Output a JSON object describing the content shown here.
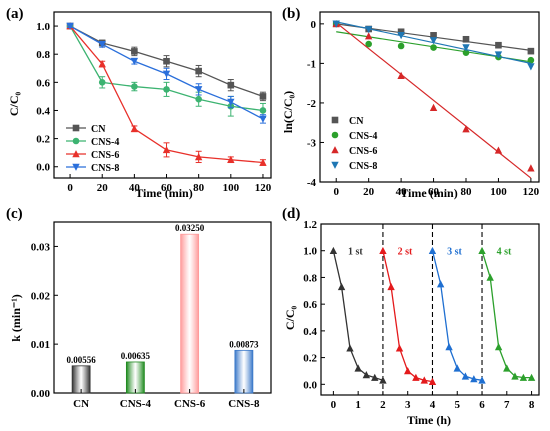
{
  "chart_data": [
    {
      "panel": "(a)",
      "type": "line",
      "xlabel": "Time (min)",
      "ylabel": "C/C₀",
      "xlim": [
        -10,
        125
      ],
      "ylim": [
        -0.08,
        1.1
      ],
      "xticks": [
        0,
        20,
        40,
        60,
        80,
        100,
        120
      ],
      "yticks": [
        0.0,
        0.2,
        0.4,
        0.6,
        0.8,
        1.0
      ],
      "x": [
        0,
        20,
        40,
        60,
        80,
        100,
        120
      ],
      "legend_position": "bottom-left",
      "series": [
        {
          "name": "CN",
          "color": "#555555",
          "marker": "square",
          "values": [
            1.0,
            0.88,
            0.82,
            0.75,
            0.68,
            0.58,
            0.5
          ],
          "errors": [
            0.01,
            0.02,
            0.03,
            0.04,
            0.04,
            0.04,
            0.03
          ]
        },
        {
          "name": "CNS-4",
          "color": "#3cb371",
          "marker": "circle",
          "values": [
            1.0,
            0.6,
            0.57,
            0.55,
            0.48,
            0.43,
            0.4
          ],
          "errors": [
            0.01,
            0.04,
            0.03,
            0.05,
            0.05,
            0.07,
            0.05
          ]
        },
        {
          "name": "CNS-6",
          "color": "#e8302a",
          "marker": "triangle-up",
          "values": [
            1.0,
            0.73,
            0.27,
            0.12,
            0.07,
            0.05,
            0.03
          ],
          "errors": [
            0.01,
            0.02,
            0.02,
            0.05,
            0.04,
            0.02,
            0.02
          ]
        },
        {
          "name": "CNS-8",
          "color": "#2a6fdb",
          "marker": "triangle-down",
          "values": [
            1.0,
            0.87,
            0.75,
            0.66,
            0.55,
            0.46,
            0.34
          ],
          "errors": [
            0.01,
            0.02,
            0.02,
            0.04,
            0.04,
            0.04,
            0.03
          ]
        }
      ]
    },
    {
      "panel": "(b)",
      "type": "scatter",
      "xlabel": "Time (min)",
      "ylabel": "ln(C/C₀)",
      "xlim": [
        -10,
        125
      ],
      "ylim": [
        -4,
        0.3
      ],
      "xticks": [
        0,
        20,
        40,
        60,
        80,
        100,
        120
      ],
      "yticks": [
        -4,
        -3,
        -2,
        -1,
        0
      ],
      "x": [
        0,
        20,
        40,
        60,
        80,
        100,
        120
      ],
      "legend_position": "bottom-left",
      "series": [
        {
          "name": "CN",
          "color": "#555555",
          "marker": "square",
          "values": [
            0,
            -0.13,
            -0.2,
            -0.29,
            -0.39,
            -0.54,
            -0.69
          ],
          "fit": [
            0,
            -0.67
          ]
        },
        {
          "name": "CNS-4",
          "color": "#2ca02c",
          "marker": "circle",
          "values": [
            0,
            -0.51,
            -0.56,
            -0.6,
            -0.73,
            -0.84,
            -0.92
          ],
          "fit": [
            -0.2,
            -0.96
          ]
        },
        {
          "name": "CNS-6",
          "color": "#d62728",
          "marker": "triangle-up",
          "values": [
            0,
            -0.31,
            -1.31,
            -2.12,
            -2.66,
            -3.2,
            -3.65
          ],
          "fit": [
            0.03,
            -3.9
          ]
        },
        {
          "name": "CNS-8",
          "color": "#1f77b4",
          "marker": "triangle-down",
          "values": [
            0,
            -0.14,
            -0.29,
            -0.42,
            -0.6,
            -0.78,
            -1.08
          ],
          "fit": [
            0.05,
            -1.0
          ]
        }
      ]
    },
    {
      "panel": "(c)",
      "type": "bar",
      "ylabel": "k (min⁻¹)",
      "categories": [
        "CN",
        "CNS-4",
        "CNS-6",
        "CNS-8"
      ],
      "values": [
        0.00556,
        0.00635,
        0.0325,
        0.00873
      ],
      "labels": [
        "0.00556",
        "0.00635",
        "0.03250",
        "0.00873"
      ],
      "colors": [
        "#333333",
        "#1f8a1f",
        "#ff9a9a",
        "#3a78c9"
      ],
      "ylim": [
        0,
        0.035
      ],
      "yticks": [
        "0.00",
        "0.01",
        "0.02",
        "0.03"
      ]
    },
    {
      "panel": "(d)",
      "type": "line",
      "xlabel": "Time (h)",
      "ylabel": "C/C₀",
      "xlim": [
        -0.5,
        8.3
      ],
      "ylim": [
        -0.08,
        1.2
      ],
      "xticks": [
        0,
        1,
        2,
        3,
        4,
        5,
        6,
        7,
        8
      ],
      "yticks": [
        0.0,
        0.2,
        0.4,
        0.6,
        0.8,
        1.0,
        1.2
      ],
      "dividers": [
        2,
        4,
        6
      ],
      "series": [
        {
          "name": "1 st",
          "color": "#333333",
          "x": [
            0,
            0.33,
            0.67,
            1.0,
            1.33,
            1.67,
            2.0
          ],
          "values": [
            1.0,
            0.73,
            0.27,
            0.12,
            0.07,
            0.05,
            0.03
          ]
        },
        {
          "name": "2 st",
          "color": "#e41a1c",
          "x": [
            2.0,
            2.33,
            2.67,
            3.0,
            3.33,
            3.67,
            4.0
          ],
          "values": [
            1.0,
            0.73,
            0.27,
            0.1,
            0.05,
            0.03,
            0.02
          ]
        },
        {
          "name": "3 st",
          "color": "#1f6fd1",
          "x": [
            4.0,
            4.33,
            4.67,
            5.0,
            5.33,
            5.67,
            6.0
          ],
          "values": [
            1.0,
            0.75,
            0.28,
            0.12,
            0.06,
            0.04,
            0.03
          ]
        },
        {
          "name": "4 st",
          "color": "#2ca02c",
          "x": [
            6.0,
            6.33,
            6.67,
            7.0,
            7.33,
            7.67,
            8.0
          ],
          "values": [
            1.0,
            0.8,
            0.28,
            0.12,
            0.06,
            0.05,
            0.05
          ]
        }
      ]
    }
  ]
}
